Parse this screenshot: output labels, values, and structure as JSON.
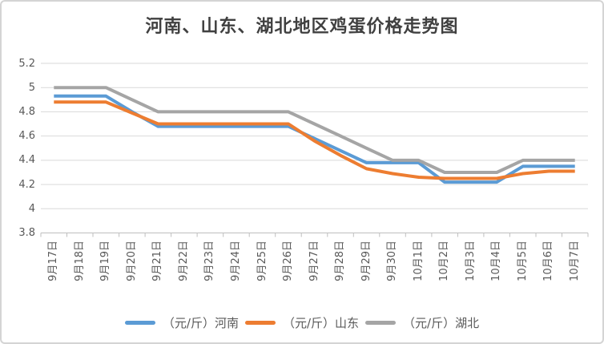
{
  "title": "河南、山东、湖北地区鸡蛋价格走势图",
  "colors": {
    "henan_line": "#5B9BD5",
    "shandong_line": "#ED7D31",
    "hubei_line": "#A5A5A5",
    "gridline": "#D9D9D9",
    "axis_line": "#BFBFBF",
    "tick_label": "#595959",
    "title_text": "#404040"
  },
  "chart_data": {
    "type": "line",
    "title": "河南、山东、湖北地区鸡蛋价格走势图",
    "categories": [
      "9月17日",
      "9月18日",
      "9月19日",
      "9月20日",
      "9月21日",
      "9月22日",
      "9月23日",
      "9月24日",
      "9月25日",
      "9月26日",
      "9月27日",
      "9月28日",
      "9月29日",
      "9月30日",
      "10月1日",
      "10月2日",
      "10月3日",
      "10月4日",
      "10月5日",
      "10月6日",
      "10月7日"
    ],
    "series": [
      {
        "key": "henan",
        "name": "（元/斤）河南",
        "color": "#5B9BD5",
        "values": [
          4.93,
          4.93,
          4.93,
          4.8,
          4.68,
          4.68,
          4.68,
          4.68,
          4.68,
          4.68,
          4.58,
          4.48,
          4.38,
          4.38,
          4.38,
          4.22,
          4.22,
          4.22,
          4.35,
          4.35,
          4.35
        ]
      },
      {
        "key": "shandong",
        "name": "（元/斤）山东",
        "color": "#ED7D31",
        "values": [
          4.88,
          4.88,
          4.88,
          4.79,
          4.7,
          4.7,
          4.7,
          4.7,
          4.7,
          4.7,
          4.56,
          4.44,
          4.33,
          4.29,
          4.26,
          4.25,
          4.25,
          4.25,
          4.29,
          4.31,
          4.31
        ]
      },
      {
        "key": "hubei",
        "name": "（元/斤）湖北",
        "color": "#A5A5A5",
        "values": [
          5.0,
          5.0,
          5.0,
          4.9,
          4.8,
          4.8,
          4.8,
          4.8,
          4.8,
          4.8,
          4.7,
          4.6,
          4.5,
          4.4,
          4.4,
          4.3,
          4.3,
          4.3,
          4.4,
          4.4,
          4.4
        ]
      }
    ],
    "ylim": [
      3.8,
      5.2
    ],
    "ytick_step": 0.2,
    "ytick_labels": [
      "3.8",
      "4",
      "4.2",
      "4.4",
      "4.6",
      "4.8",
      "5",
      "5.2"
    ],
    "grid": true,
    "legend_position": "bottom"
  }
}
